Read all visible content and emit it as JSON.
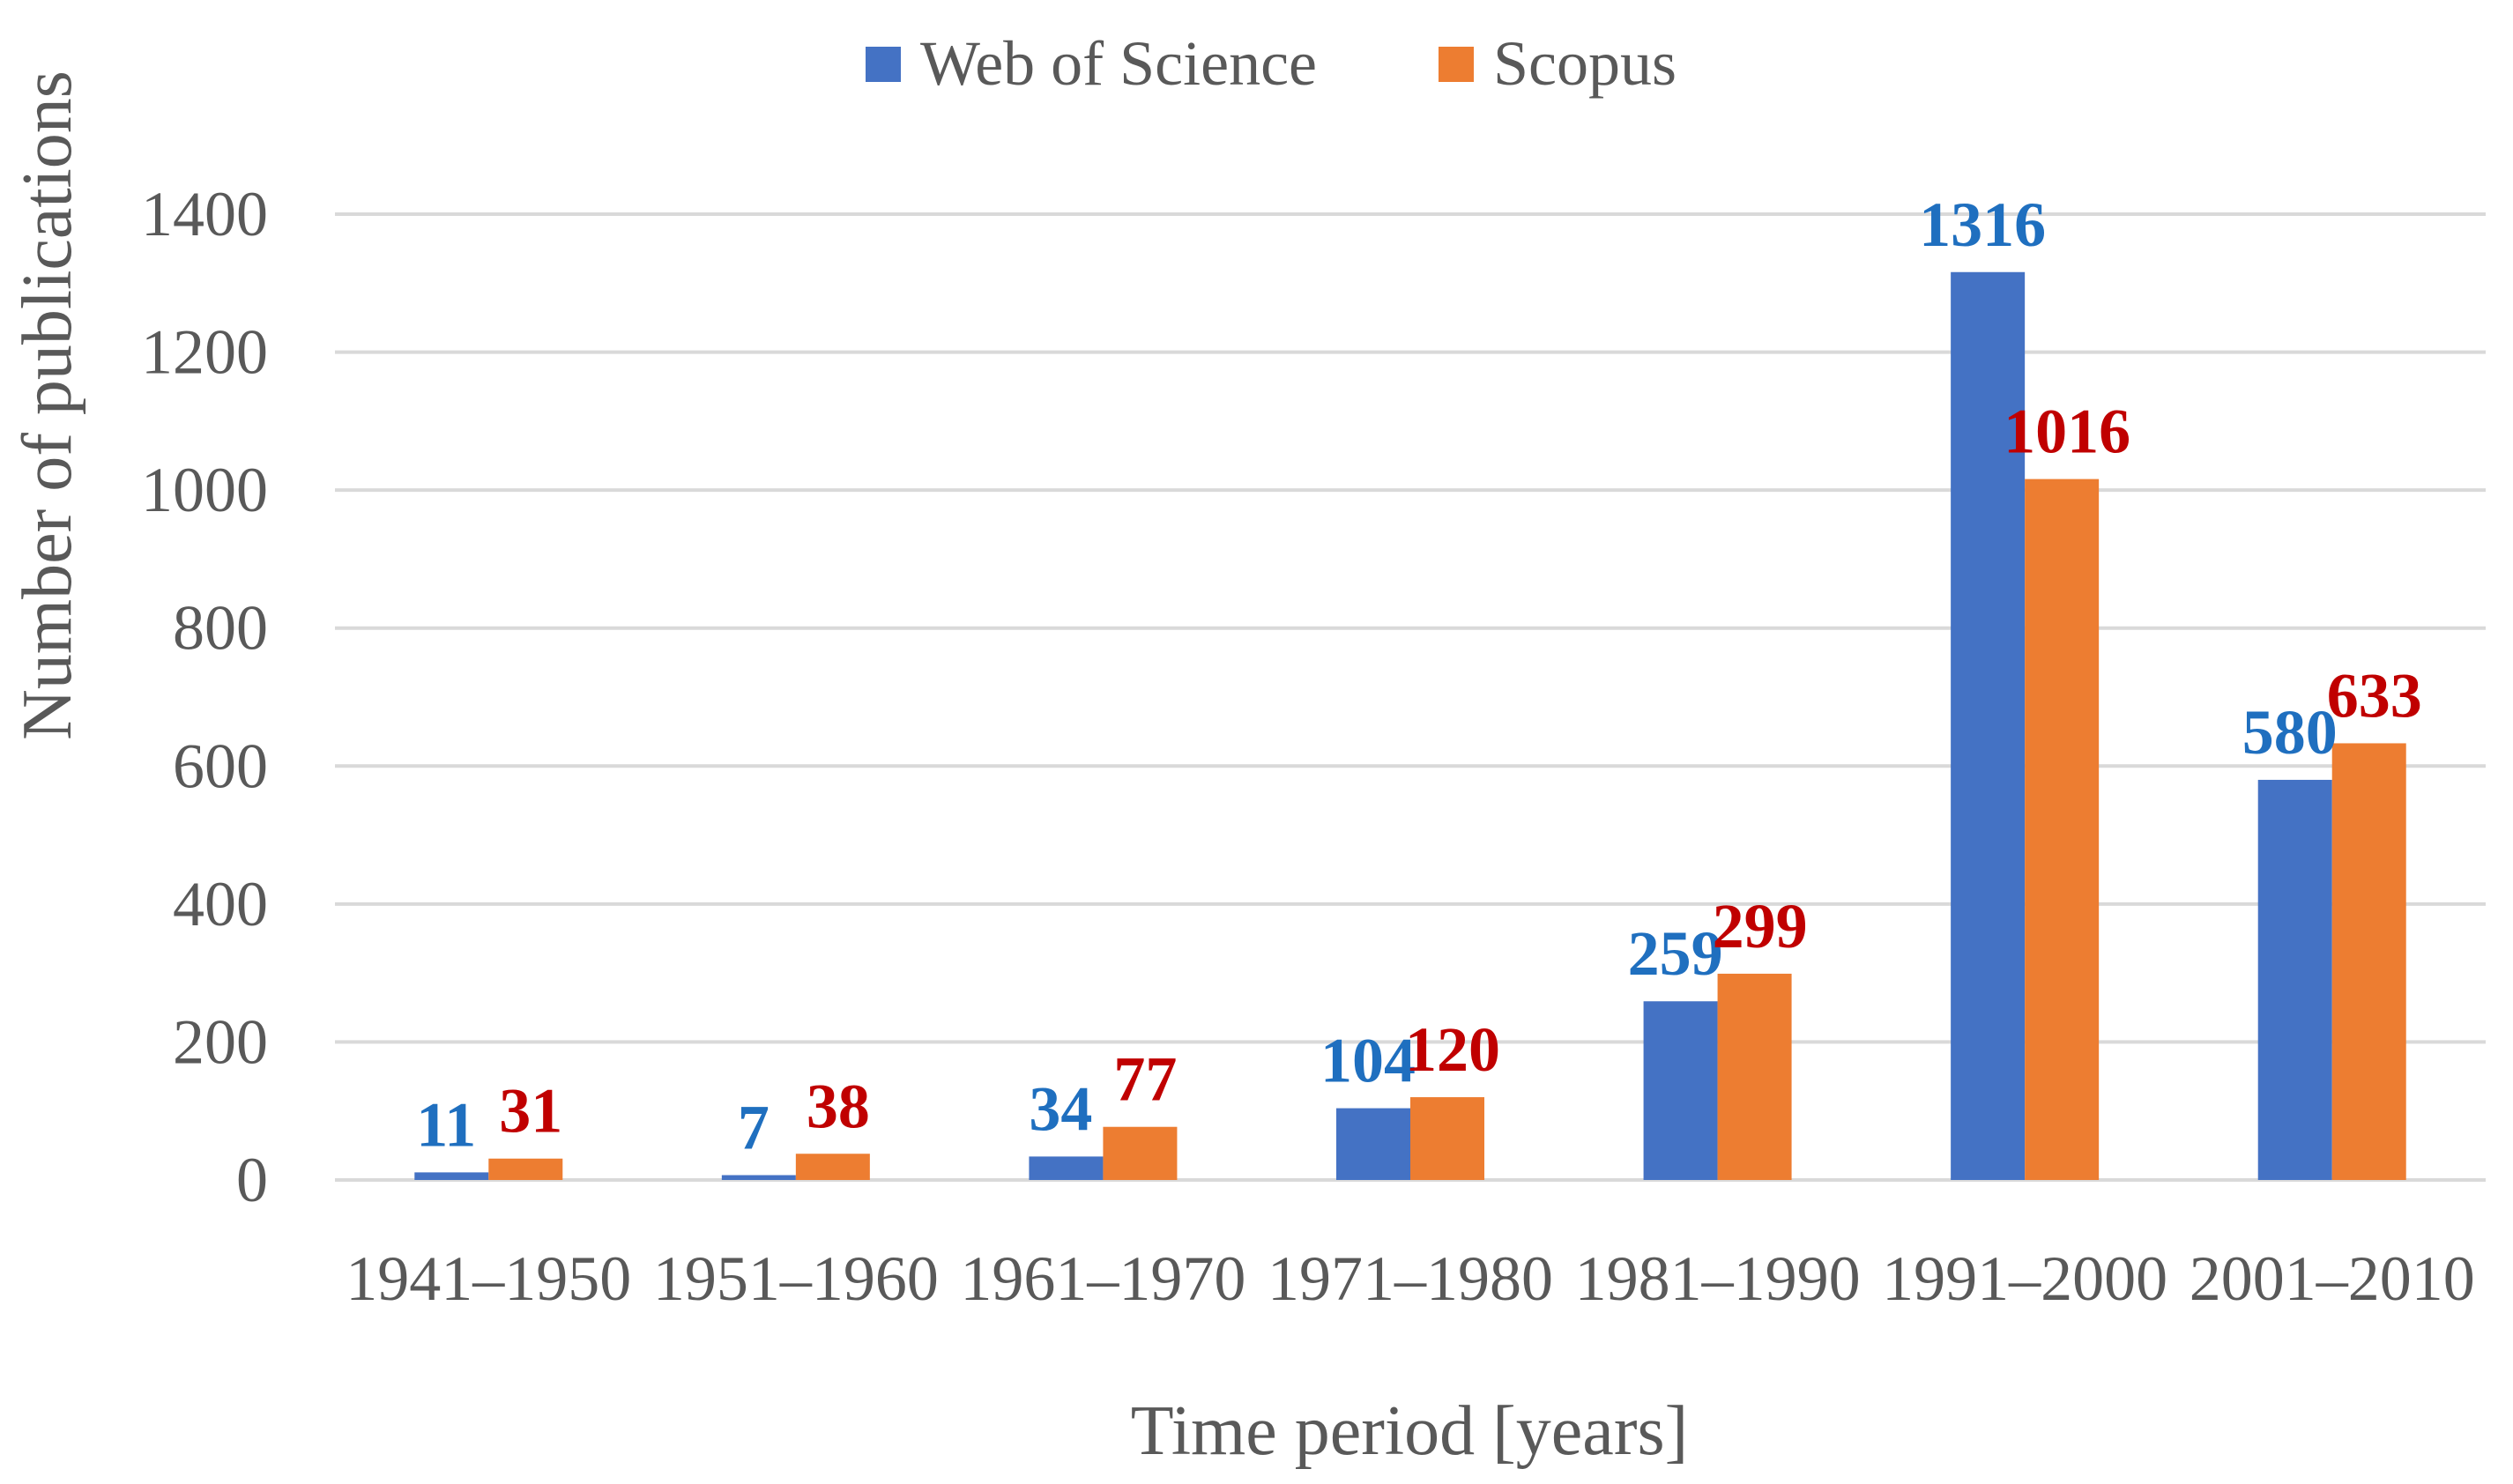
{
  "chart_data": {
    "type": "bar",
    "title": "",
    "xlabel": "Time period [years]",
    "ylabel": "Number of publications",
    "ylim": [
      0,
      1400
    ],
    "yticks": [
      0,
      200,
      400,
      600,
      800,
      1000,
      1200,
      1400
    ],
    "grid": true,
    "legend_position": "top-center",
    "categories": [
      "1941–1950",
      "1951–1960",
      "1961–1970",
      "1971–1980",
      "1981–1990",
      "1991–2000",
      "2001–2010"
    ],
    "series": [
      {
        "name": "Web of Science",
        "color": "#4472c4",
        "label_color": "#1f6fbf",
        "values": [
          11,
          7,
          34,
          104,
          259,
          1316,
          580
        ]
      },
      {
        "name": "Scopus",
        "color": "#ed7d31",
        "label_color": "#c00000",
        "values": [
          31,
          38,
          77,
          120,
          299,
          1016,
          633
        ]
      }
    ]
  }
}
